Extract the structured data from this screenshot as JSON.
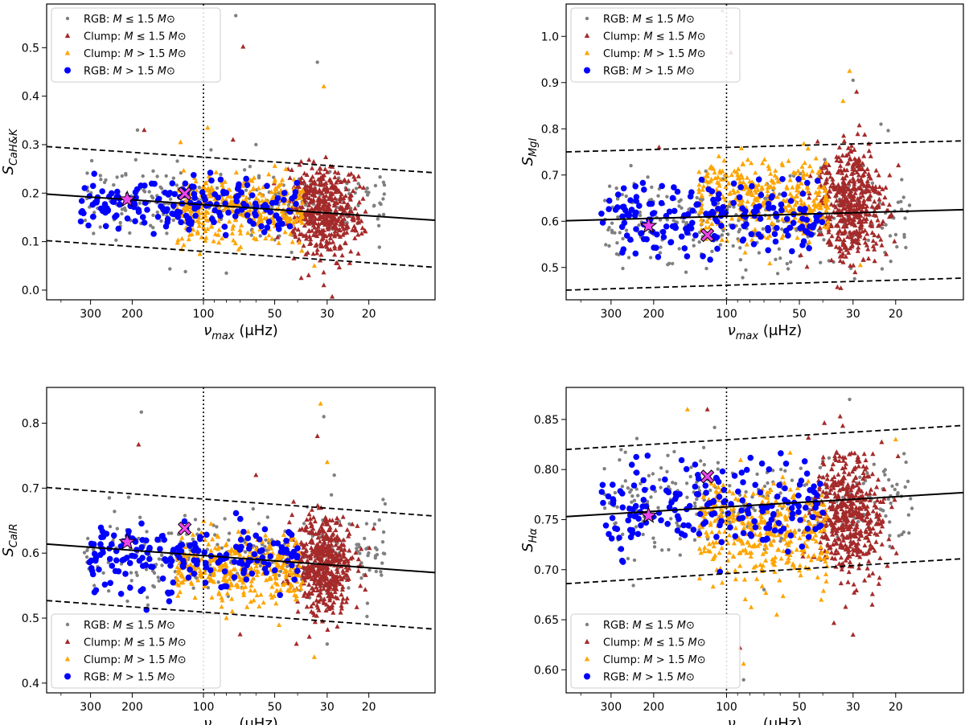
{
  "chart_data": [
    {
      "type": "scatter",
      "panel": "top-left",
      "xlabel": "ν_max (μHz)",
      "ylabel": "S_CaH&K",
      "x_scale": "log",
      "x_reversed": true,
      "xlim": [
        460,
        10.5
      ],
      "ylim": [
        -0.02,
        0.59
      ],
      "xticks": [
        300,
        200,
        100,
        50,
        30,
        20
      ],
      "xtick_labels": [
        "300",
        "200",
        "100",
        "50",
        "30",
        "20"
      ],
      "yticks": [
        0.0,
        0.1,
        0.2,
        0.3,
        0.4,
        0.5
      ],
      "ytick_labels": [
        "0.0",
        "0.1",
        "0.2",
        "0.3",
        "0.4",
        "0.5"
      ],
      "legend_position": "upper-left",
      "vline_x": 100,
      "fit_line": [
        [
          460,
          0.198
        ],
        [
          10.5,
          0.144
        ]
      ],
      "bound_upper": [
        [
          460,
          0.296
        ],
        [
          10.5,
          0.242
        ]
      ],
      "bound_lower": [
        [
          460,
          0.102
        ],
        [
          10.5,
          0.047
        ]
      ],
      "markers": [
        {
          "shape": "star",
          "x": 210,
          "y": 0.187
        },
        {
          "shape": "cross",
          "x": 120,
          "y": 0.199
        }
      ],
      "series": [
        {
          "name": "RGB: M ≤ 1.5 M⊙",
          "marker": "point",
          "color": "#808080",
          "count": 280,
          "x_range": [
            320,
            17
          ],
          "y_center": 0.185,
          "y_spread": 0.035
        },
        {
          "name": "Clump: M ≤ 1.5 M⊙",
          "marker": "triangle",
          "color": "#a52a2a",
          "count": 500,
          "x_range": [
            42,
            24
          ],
          "y_center": 0.16,
          "y_spread": 0.045
        },
        {
          "name": "Clump: M > 1.5 M⊙",
          "marker": "triangle",
          "color": "#ffa500",
          "count": 380,
          "x_range": [
            130,
            38
          ],
          "y_center": 0.17,
          "y_spread": 0.035
        },
        {
          "name": "RGB: M > 1.5 M⊙",
          "marker": "circle",
          "color": "#0000ff",
          "count": 190,
          "x_range": [
            330,
            40
          ],
          "y_center": 0.18,
          "y_spread": 0.03
        }
      ],
      "outliers": [
        [
          73,
          0.566
        ],
        [
          68,
          0.502
        ],
        [
          96,
          0.335
        ],
        [
          190,
          0.33
        ],
        [
          178,
          0.33
        ],
        [
          31,
          0.42
        ],
        [
          33,
          0.47
        ],
        [
          31,
          0.01
        ],
        [
          34,
          0.05
        ],
        [
          60,
          0.3
        ],
        [
          75,
          0.31
        ],
        [
          125,
          0.305
        ],
        [
          80,
          0.035
        ]
      ]
    },
    {
      "type": "scatter",
      "panel": "top-right",
      "xlabel": "ν_max (μHz)",
      "ylabel": "S_MgI",
      "x_scale": "log",
      "x_reversed": true,
      "xlim": [
        460,
        10.5
      ],
      "ylim": [
        0.43,
        1.07
      ],
      "xticks": [
        300,
        200,
        100,
        50,
        30,
        20
      ],
      "xtick_labels": [
        "300",
        "200",
        "100",
        "50",
        "30",
        "20"
      ],
      "yticks": [
        0.5,
        0.6,
        0.7,
        0.8,
        0.9,
        1.0
      ],
      "ytick_labels": [
        "0.5",
        "0.6",
        "0.7",
        "0.8",
        "0.9",
        "1.0"
      ],
      "legend_position": "upper-left",
      "vline_x": 100,
      "fit_line": [
        [
          460,
          0.601
        ],
        [
          10.5,
          0.625
        ]
      ],
      "bound_upper": [
        [
          460,
          0.75
        ],
        [
          10.5,
          0.774
        ]
      ],
      "bound_lower": [
        [
          460,
          0.451
        ],
        [
          10.5,
          0.477
        ]
      ],
      "markers": [
        {
          "shape": "star",
          "x": 210,
          "y": 0.59
        },
        {
          "shape": "cross",
          "x": 120,
          "y": 0.57
        }
      ],
      "series": [
        {
          "name": "RGB: M ≤ 1.5 M⊙",
          "marker": "point",
          "color": "#808080",
          "count": 280,
          "x_range": [
            320,
            17
          ],
          "y_center": 0.6,
          "y_spread": 0.05
        },
        {
          "name": "Clump: M ≤ 1.5 M⊙",
          "marker": "triangle",
          "color": "#a52a2a",
          "count": 500,
          "x_range": [
            42,
            24
          ],
          "y_center": 0.635,
          "y_spread": 0.06
        },
        {
          "name": "Clump: M > 1.5 M⊙",
          "marker": "triangle",
          "color": "#ffa500",
          "count": 380,
          "x_range": [
            130,
            38
          ],
          "y_center": 0.65,
          "y_spread": 0.045
        },
        {
          "name": "RGB: M > 1.5 M⊙",
          "marker": "circle",
          "color": "#0000ff",
          "count": 190,
          "x_range": [
            330,
            40
          ],
          "y_center": 0.61,
          "y_spread": 0.04
        }
      ],
      "outliers": [
        [
          104,
          1.055
        ],
        [
          96,
          0.965
        ],
        [
          31,
          0.925
        ],
        [
          30,
          0.905
        ],
        [
          29,
          0.88
        ],
        [
          33,
          0.86
        ],
        [
          23,
          0.81
        ],
        [
          190,
          0.76
        ],
        [
          28,
          0.505
        ],
        [
          60,
          0.52
        ]
      ]
    },
    {
      "type": "scatter",
      "panel": "bottom-left",
      "xlabel": "ν_max (μHz)",
      "ylabel": "S_CaIR",
      "x_scale": "log",
      "x_reversed": true,
      "xlim": [
        460,
        10.5
      ],
      "ylim": [
        0.385,
        0.855
      ],
      "xticks": [
        300,
        200,
        100,
        50,
        30,
        20
      ],
      "xtick_labels": [
        "300",
        "200",
        "100",
        "50",
        "30",
        "20"
      ],
      "yticks": [
        0.4,
        0.5,
        0.6,
        0.7,
        0.8
      ],
      "ytick_labels": [
        "0.4",
        "0.5",
        "0.6",
        "0.7",
        "0.8"
      ],
      "legend_position": "lower-left",
      "vline_x": 100,
      "fit_line": [
        [
          460,
          0.614
        ],
        [
          10.5,
          0.57
        ]
      ],
      "bound_upper": [
        [
          460,
          0.701
        ],
        [
          10.5,
          0.657
        ]
      ],
      "bound_lower": [
        [
          460,
          0.527
        ],
        [
          10.5,
          0.483
        ]
      ],
      "markers": [
        {
          "shape": "star",
          "x": 210,
          "y": 0.617
        },
        {
          "shape": "cross",
          "x": 120,
          "y": 0.638
        }
      ],
      "series": [
        {
          "name": "RGB: M ≤ 1.5 M⊙",
          "marker": "point",
          "color": "#808080",
          "count": 280,
          "x_range": [
            320,
            17
          ],
          "y_center": 0.595,
          "y_spread": 0.03
        },
        {
          "name": "Clump: M ≤ 1.5 M⊙",
          "marker": "triangle",
          "color": "#a52a2a",
          "count": 500,
          "x_range": [
            42,
            24
          ],
          "y_center": 0.58,
          "y_spread": 0.035
        },
        {
          "name": "Clump: M > 1.5 M⊙",
          "marker": "triangle",
          "color": "#ffa500",
          "count": 380,
          "x_range": [
            130,
            38
          ],
          "y_center": 0.575,
          "y_spread": 0.025
        },
        {
          "name": "RGB: M > 1.5 M⊙",
          "marker": "circle",
          "color": "#0000ff",
          "count": 190,
          "x_range": [
            330,
            40
          ],
          "y_center": 0.595,
          "y_spread": 0.025
        }
      ],
      "outliers": [
        [
          183,
          0.817
        ],
        [
          188,
          0.767
        ],
        [
          32,
          0.83
        ],
        [
          31,
          0.81
        ],
        [
          33,
          0.78
        ],
        [
          30,
          0.74
        ],
        [
          28,
          0.72
        ],
        [
          60,
          0.72
        ],
        [
          34,
          0.44
        ],
        [
          30,
          0.46
        ],
        [
          70,
          0.475
        ],
        [
          80,
          0.5
        ],
        [
          250,
          0.685
        ]
      ]
    },
    {
      "type": "scatter",
      "panel": "bottom-right",
      "xlabel": "ν_max (μHz)",
      "ylabel": "S_Hα",
      "x_scale": "log",
      "x_reversed": true,
      "xlim": [
        460,
        10.5
      ],
      "ylim": [
        0.577,
        0.882
      ],
      "xticks": [
        300,
        200,
        100,
        50,
        30,
        20
      ],
      "xtick_labels": [
        "300",
        "200",
        "100",
        "50",
        "30",
        "20"
      ],
      "yticks": [
        0.6,
        0.65,
        0.7,
        0.75,
        0.8,
        0.85
      ],
      "ytick_labels": [
        "0.60",
        "0.65",
        "0.70",
        "0.75",
        "0.80",
        "0.85"
      ],
      "legend_position": "lower-left",
      "vline_x": 100,
      "fit_line": [
        [
          460,
          0.753
        ],
        [
          10.5,
          0.777
        ]
      ],
      "bound_upper": [
        [
          460,
          0.82
        ],
        [
          10.5,
          0.844
        ]
      ],
      "bound_lower": [
        [
          460,
          0.686
        ],
        [
          10.5,
          0.711
        ]
      ],
      "markers": [
        {
          "shape": "star",
          "x": 210,
          "y": 0.754
        },
        {
          "shape": "cross",
          "x": 120,
          "y": 0.793
        }
      ],
      "series": [
        {
          "name": "RGB: M ≤ 1.5 M⊙",
          "marker": "point",
          "color": "#808080",
          "count": 280,
          "x_range": [
            320,
            17
          ],
          "y_center": 0.765,
          "y_spread": 0.025
        },
        {
          "name": "Clump: M ≤ 1.5 M⊙",
          "marker": "triangle",
          "color": "#a52a2a",
          "count": 500,
          "x_range": [
            42,
            24
          ],
          "y_center": 0.755,
          "y_spread": 0.03
        },
        {
          "name": "Clump: M > 1.5 M⊙",
          "marker": "triangle",
          "color": "#ffa500",
          "count": 380,
          "x_range": [
            130,
            38
          ],
          "y_center": 0.74,
          "y_spread": 0.025
        },
        {
          "name": "RGB: M > 1.5 M⊙",
          "marker": "circle",
          "color": "#0000ff",
          "count": 190,
          "x_range": [
            330,
            40
          ],
          "y_center": 0.762,
          "y_spread": 0.02
        }
      ],
      "outliers": [
        [
          31,
          0.87
        ],
        [
          120,
          0.86
        ],
        [
          145,
          0.86
        ],
        [
          112,
          0.842
        ],
        [
          88,
          0.622
        ],
        [
          85,
          0.606
        ],
        [
          85,
          0.59
        ],
        [
          30,
          0.635
        ],
        [
          62,
          0.655
        ],
        [
          70,
          0.68
        ],
        [
          25,
          0.665
        ],
        [
          20,
          0.83
        ]
      ]
    }
  ]
}
